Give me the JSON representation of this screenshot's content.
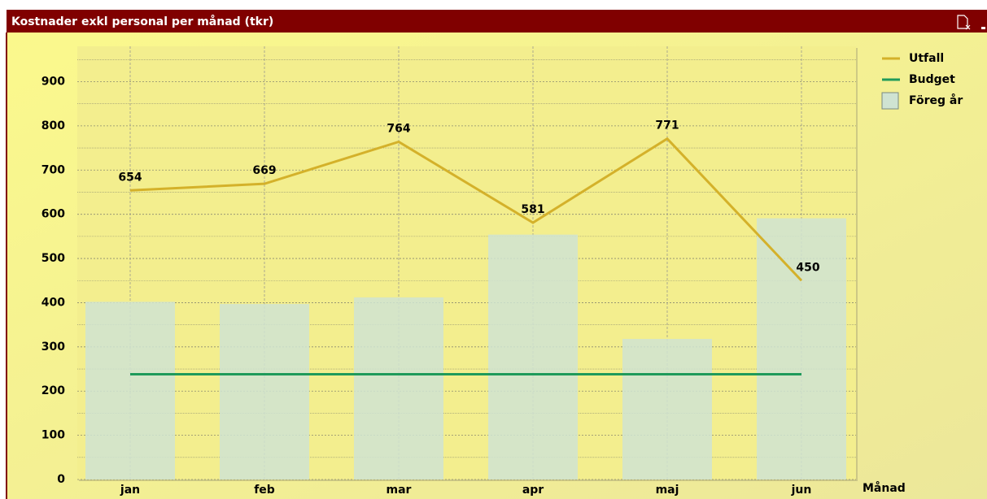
{
  "chart_data": {
    "type": "combo",
    "title": "Kostnader exkl personal per månad (tkr)",
    "x_label": "Månad",
    "categories": [
      "jan",
      "feb",
      "mar",
      "apr",
      "maj",
      "jun"
    ],
    "series": [
      {
        "name": "Utfall",
        "type": "line",
        "color": "#d4b12a",
        "values": [
          654,
          669,
          764,
          581,
          771,
          450
        ],
        "data_labels": true
      },
      {
        "name": "Budget",
        "type": "line",
        "color": "#1f9a5a",
        "values": [
          238,
          238,
          238,
          238,
          238,
          238
        ]
      },
      {
        "name": "Föreg år",
        "type": "bar",
        "color": "#cfe3d2",
        "values": [
          402,
          397,
          412,
          554,
          318,
          591
        ]
      }
    ],
    "ylim": [
      0,
      980
    ],
    "yticks": [
      0,
      100,
      200,
      300,
      400,
      500,
      600,
      700,
      800,
      900
    ],
    "minor_yticks": [
      50,
      150,
      250,
      350,
      450,
      550,
      650,
      750,
      850,
      950
    ],
    "grid": true,
    "legend": "top-right"
  }
}
